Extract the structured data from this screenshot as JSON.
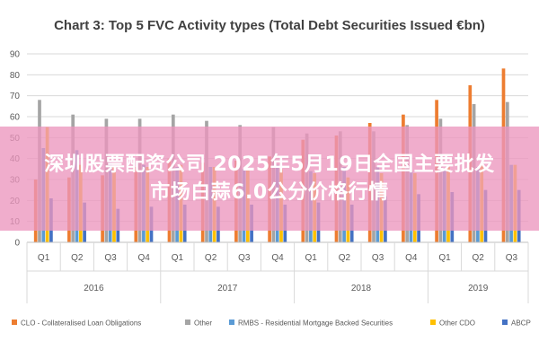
{
  "chart_data": {
    "type": "bar",
    "title": "Chart 3: Top 5 FVC Activity types (Total Debt Securities Issued €bn)",
    "xlabel": "",
    "ylabel": "",
    "ylim": [
      0,
      90
    ],
    "yticks": [
      "0",
      "10",
      "20",
      "30",
      "40",
      "50",
      "60",
      "70",
      "80",
      "90"
    ],
    "grid": true,
    "legend_position": "bottom",
    "categories": [
      "Q1",
      "Q2",
      "Q3",
      "Q4",
      "Q1",
      "Q2",
      "Q3",
      "Q4",
      "Q1",
      "Q2",
      "Q3",
      "Q4",
      "Q1",
      "Q2",
      "Q3"
    ],
    "groups": [
      {
        "label": "2016",
        "count": 4
      },
      {
        "label": "2017",
        "count": 4
      },
      {
        "label": "2018",
        "count": 4
      },
      {
        "label": "2019",
        "count": 3
      }
    ],
    "series": [
      {
        "name": "CLO - Collateralised Loan Obligations",
        "color": "#ed7d31",
        "values": [
          30,
          31,
          32,
          36,
          40,
          38,
          39,
          41,
          49,
          51,
          57,
          61,
          68,
          75,
          83
        ]
      },
      {
        "name": "Other",
        "color": "#a5a5a5",
        "values": [
          68,
          61,
          59,
          59,
          61,
          58,
          56,
          55,
          52,
          53,
          53,
          56,
          59,
          66,
          67
        ]
      },
      {
        "name": "RMBS - Residential Mortgage Backed Securities",
        "color": "#5b9bd5",
        "values": [
          45,
          44,
          38,
          37,
          36,
          36,
          35,
          37,
          34,
          36,
          36,
          34,
          35,
          36,
          37
        ]
      },
      {
        "name": "Other CDO",
        "color": "#ffc000",
        "values": [
          55,
          37,
          36,
          36,
          37,
          36,
          35,
          35,
          33,
          31,
          33,
          33,
          36,
          38,
          37
        ]
      },
      {
        "name": "ABCP",
        "color": "#4472c4",
        "values": [
          21,
          19,
          16,
          17,
          18,
          17,
          18,
          18,
          19,
          18,
          22,
          23,
          24,
          25,
          25
        ]
      }
    ]
  },
  "overlay": {
    "line1": "深圳股票配资公司 2025年5月19日全国主要批发",
    "line2": "市场白蒜6.0公分价格行情"
  }
}
